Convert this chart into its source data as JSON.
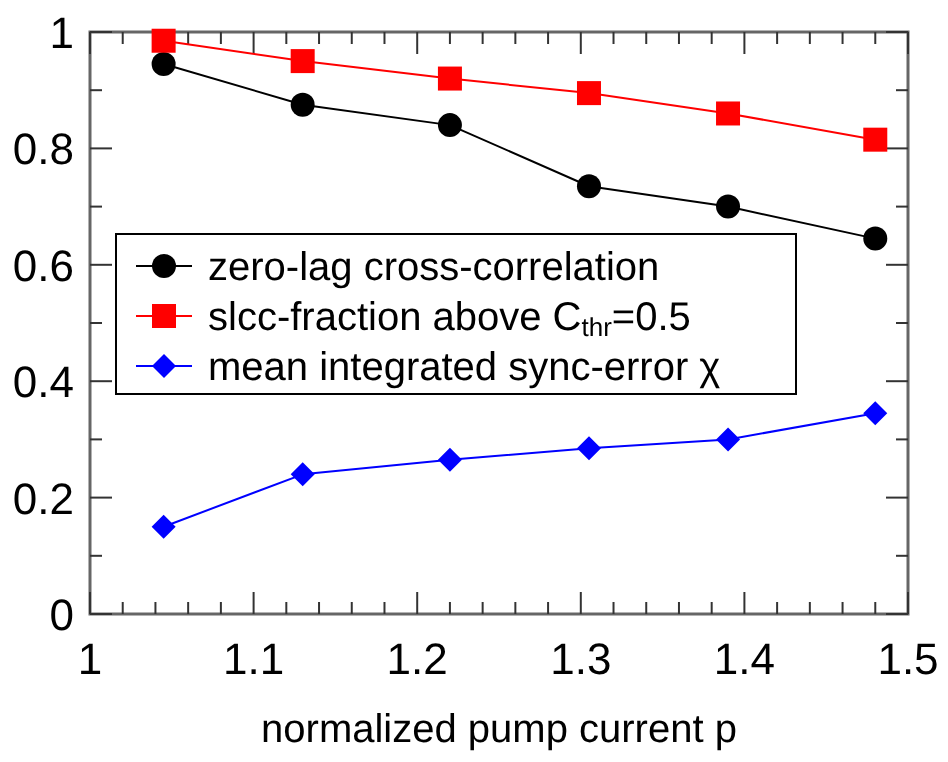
{
  "chart_data": {
    "type": "line",
    "xlabel": "normalized pump current p",
    "x": [
      1.045,
      1.13,
      1.22,
      1.305,
      1.39,
      1.48
    ],
    "series": [
      {
        "name": "zero-lag cross-correlation",
        "color": "#000000",
        "marker": "circle",
        "values": [
          0.945,
          0.875,
          0.84,
          0.735,
          0.7,
          0.645
        ]
      },
      {
        "name": "slcc-fraction above C$_{thr}$=0.5",
        "color": "#ff0000",
        "marker": "square",
        "values": [
          0.985,
          0.95,
          0.92,
          0.895,
          0.86,
          0.815
        ]
      },
      {
        "name": "mean integrated sync-error χ",
        "color": "#0000ff",
        "marker": "diamond",
        "values": [
          0.15,
          0.24,
          0.265,
          0.285,
          0.3,
          0.345
        ]
      }
    ],
    "xlim": [
      1,
      1.5
    ],
    "xticks": [
      1,
      {
        "value": 1.02,
        "label": null
      },
      {
        "value": 1.04,
        "label": null
      },
      {
        "value": 1.06,
        "label": null
      },
      {
        "value": 1.08,
        "label": null
      },
      1.1,
      {
        "value": 1.12,
        "label": null
      },
      {
        "value": 1.14,
        "label": null
      },
      {
        "value": 1.16,
        "label": null
      },
      {
        "value": 1.18,
        "label": null
      },
      1.2,
      {
        "value": 1.22,
        "label": null
      },
      {
        "value": 1.24,
        "label": null
      },
      {
        "value": 1.26,
        "label": null
      },
      {
        "value": 1.28,
        "label": null
      },
      1.3,
      {
        "value": 1.32,
        "label": null
      },
      {
        "value": 1.34,
        "label": null
      },
      {
        "value": 1.36,
        "label": null
      },
      {
        "value": 1.38,
        "label": null
      },
      1.4,
      {
        "value": 1.42,
        "label": null
      },
      {
        "value": 1.44,
        "label": null
      },
      {
        "value": 1.46,
        "label": null
      },
      {
        "value": 1.48,
        "label": null
      },
      1.5
    ],
    "ylim": [
      0,
      1
    ],
    "yticks": [
      0,
      {
        "value": 0.1,
        "label": null
      },
      0.2,
      {
        "value": 0.3,
        "label": null
      },
      0.4,
      {
        "value": 0.5,
        "label": null
      },
      0.6,
      {
        "value": 0.7,
        "label": null
      },
      0.8,
      {
        "value": 0.9,
        "label": null
      },
      1
    ],
    "grid": false,
    "legend": "left"
  }
}
